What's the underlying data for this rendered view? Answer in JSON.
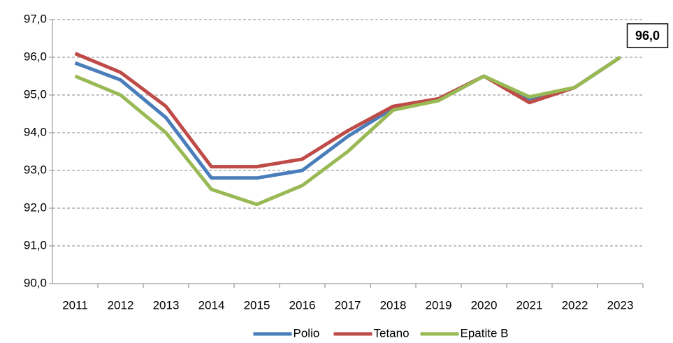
{
  "chart_data": {
    "type": "line",
    "categories": [
      "2011",
      "2012",
      "2013",
      "2014",
      "2015",
      "2016",
      "2017",
      "2018",
      "2019",
      "2020",
      "2021",
      "2022",
      "2023"
    ],
    "series": [
      {
        "name": "Polio",
        "color": "#4a7ebb",
        "values": [
          95.85,
          95.4,
          94.4,
          92.8,
          92.8,
          93.0,
          93.9,
          94.65,
          94.9,
          95.5,
          94.9,
          95.2,
          96.0
        ]
      },
      {
        "name": "Tetano",
        "color": "#be4b48",
        "values": [
          96.1,
          95.6,
          94.7,
          93.1,
          93.1,
          93.3,
          94.05,
          94.7,
          94.9,
          95.5,
          94.8,
          95.2,
          96.0
        ]
      },
      {
        "name": "Epatite B",
        "color": "#98b954",
        "values": [
          95.5,
          95.0,
          94.0,
          92.5,
          92.1,
          92.6,
          93.5,
          94.6,
          94.85,
          95.5,
          94.95,
          95.2,
          96.0
        ],
        "value_labels": [
          null,
          null,
          null,
          null,
          null,
          null,
          null,
          null,
          null,
          null,
          null,
          null,
          "96,0"
        ]
      }
    ],
    "ylim": [
      90,
      97
    ],
    "yticks": [
      {
        "value": 90,
        "label": "90,0"
      },
      {
        "value": 91,
        "label": "91,0"
      },
      {
        "value": 92,
        "label": "92,0"
      },
      {
        "value": 93,
        "label": "93,0"
      },
      {
        "value": 94,
        "label": "94,0"
      },
      {
        "value": 95,
        "label": "95,0"
      },
      {
        "value": 96,
        "label": "96,0"
      },
      {
        "value": 97,
        "label": "97,0"
      }
    ],
    "grid": true,
    "legend": "bottom"
  }
}
